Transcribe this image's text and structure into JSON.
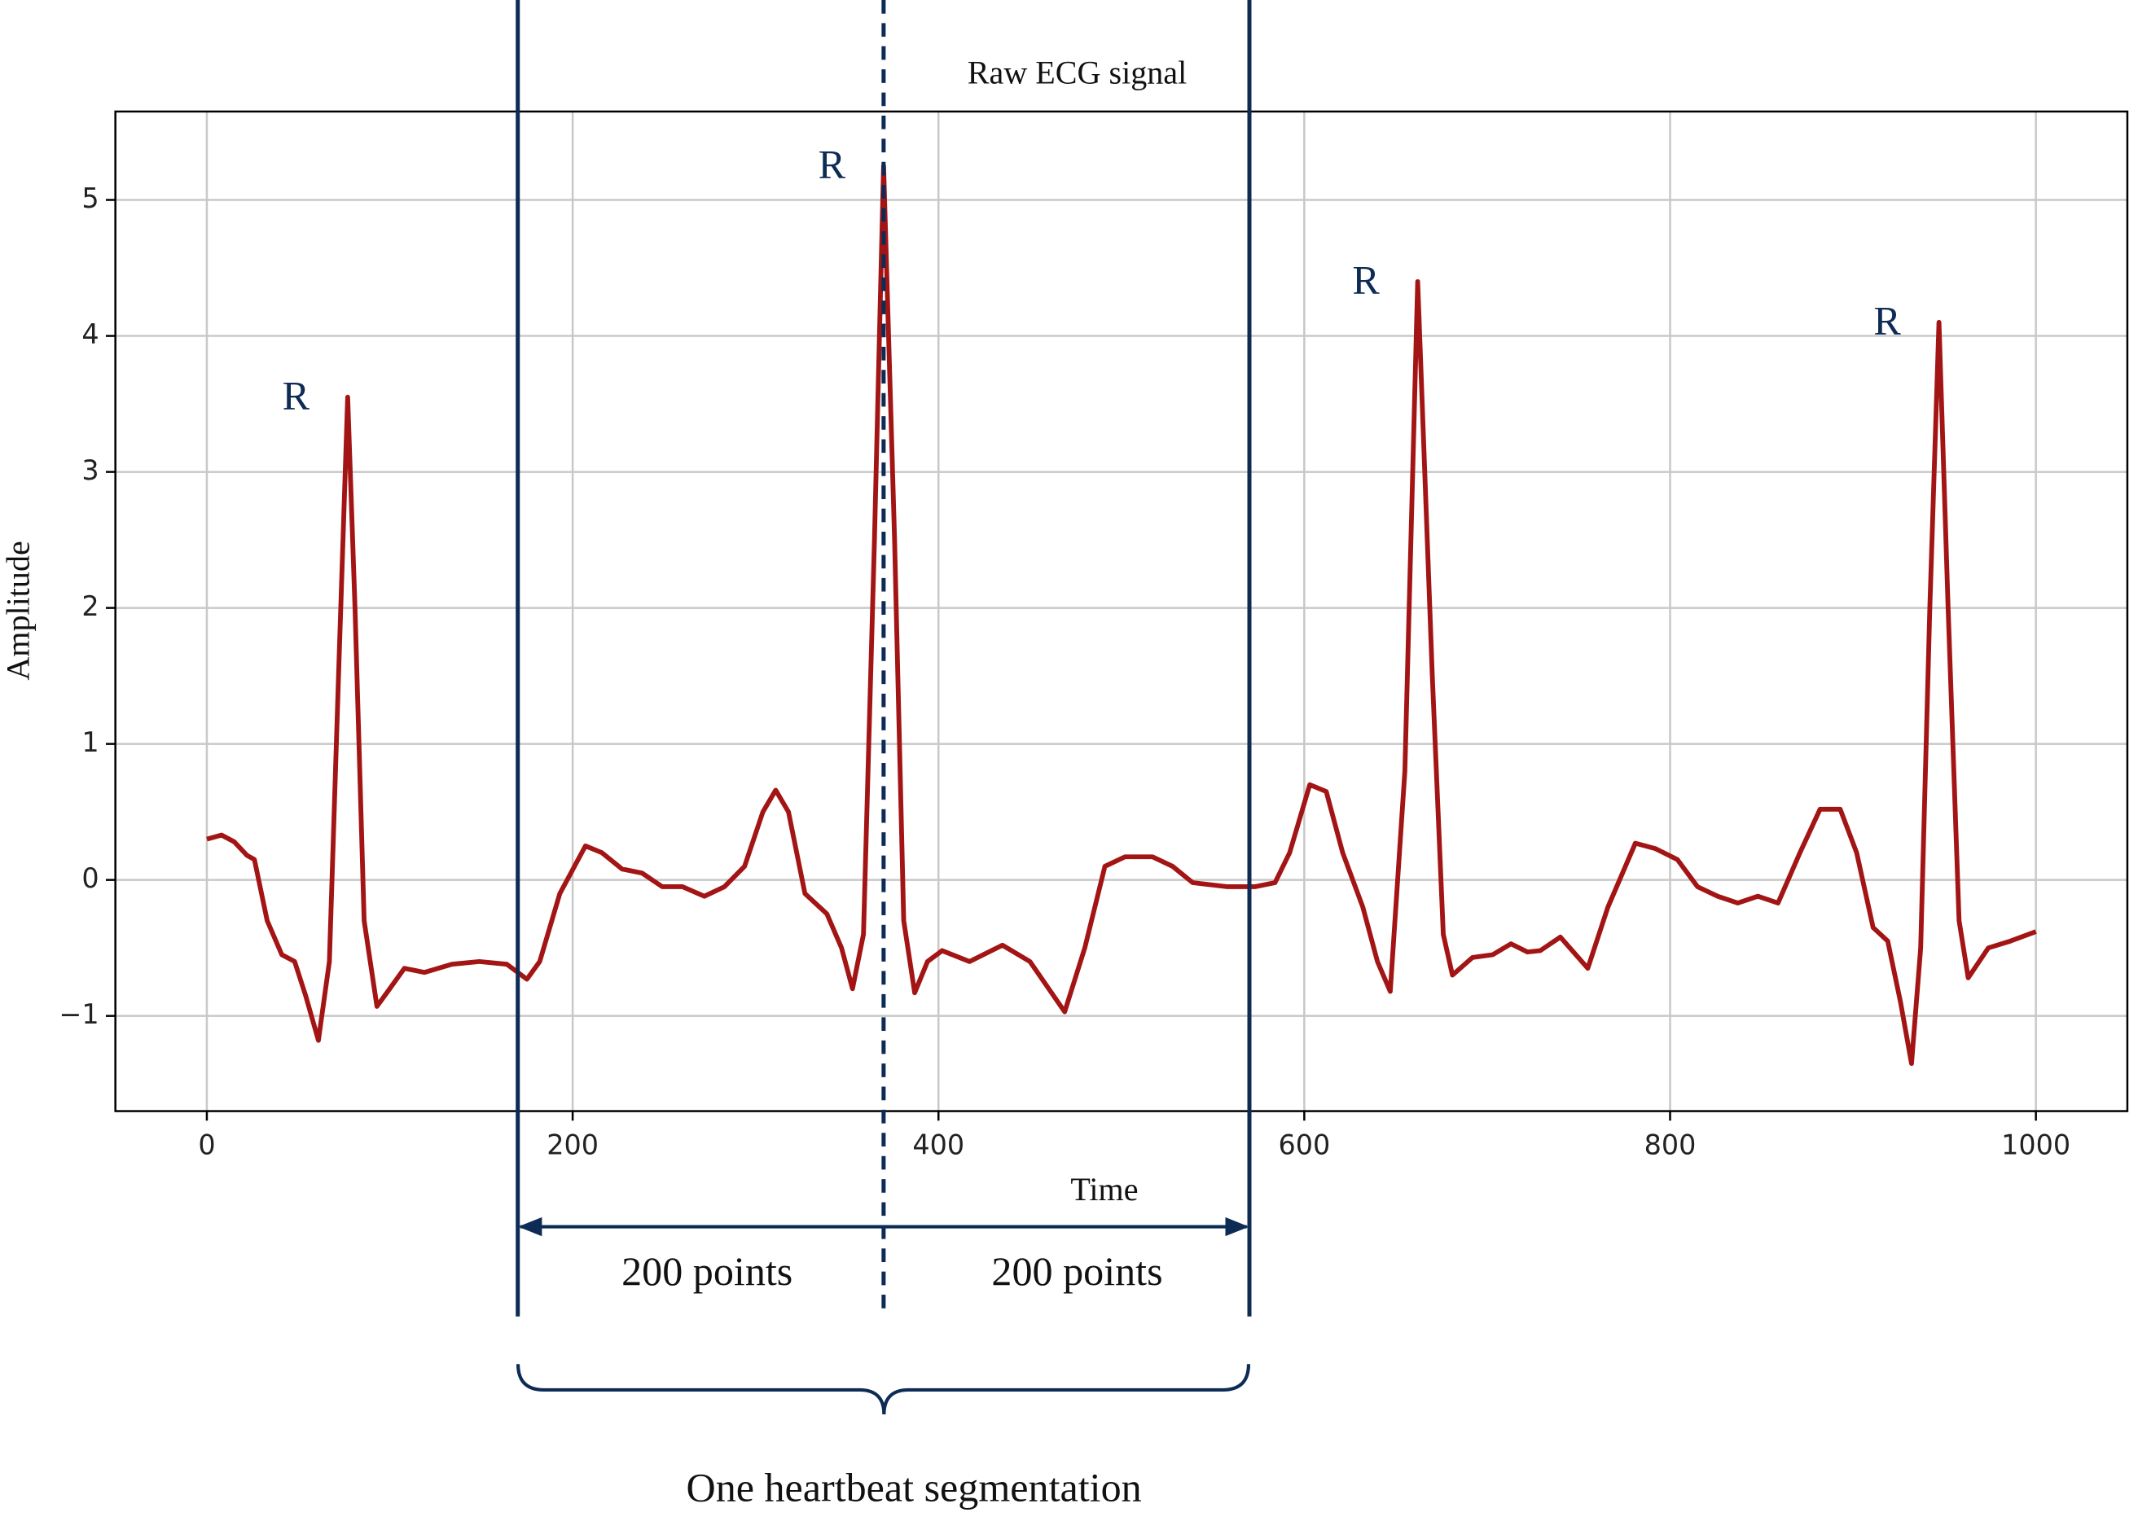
{
  "chart_data": {
    "type": "line",
    "title": "Raw ECG signal",
    "x_label": "Time",
    "y_label": "Amplitude",
    "x": [
      0,
      8,
      15,
      22,
      26,
      33,
      41,
      48,
      54,
      61,
      67,
      72,
      77,
      81,
      86,
      93,
      100,
      108,
      119,
      134,
      149,
      164,
      175,
      182,
      193,
      207,
      216,
      227,
      238,
      249,
      260,
      272,
      283,
      294,
      304,
      311,
      318,
      327,
      339,
      347,
      353,
      359,
      365,
      370,
      376,
      381,
      387,
      394,
      402,
      417,
      435,
      450,
      469,
      480,
      491,
      502,
      517,
      528,
      539,
      558,
      573,
      584,
      592,
      603,
      612,
      621,
      632,
      640,
      647,
      655,
      662,
      670,
      676,
      681,
      692,
      703,
      713,
      722,
      729,
      740,
      755,
      766,
      781,
      792,
      804,
      815,
      826,
      837,
      848,
      859,
      871,
      882,
      893,
      902,
      911,
      919,
      926,
      932,
      937,
      942,
      947,
      952,
      958,
      963,
      974,
      986,
      1000
    ],
    "series": [
      {
        "name": "Raw ECG signal",
        "color": "#a31515",
        "values": [
          0.3,
          0.33,
          0.28,
          0.18,
          0.15,
          -0.3,
          -0.55,
          -0.6,
          -0.85,
          -1.18,
          -0.6,
          1.5,
          3.55,
          2.0,
          -0.3,
          -0.93,
          -0.8,
          -0.65,
          -0.68,
          -0.62,
          -0.6,
          -0.62,
          -0.73,
          -0.6,
          -0.1,
          0.25,
          0.2,
          0.08,
          0.05,
          -0.05,
          -0.05,
          -0.12,
          -0.05,
          0.1,
          0.5,
          0.66,
          0.5,
          -0.1,
          -0.25,
          -0.5,
          -0.8,
          -0.4,
          2.5,
          5.25,
          2.5,
          -0.3,
          -0.83,
          -0.6,
          -0.52,
          -0.6,
          -0.48,
          -0.6,
          -0.97,
          -0.5,
          0.1,
          0.17,
          0.17,
          0.1,
          -0.02,
          -0.05,
          -0.05,
          -0.02,
          0.2,
          0.7,
          0.65,
          0.2,
          -0.2,
          -0.6,
          -0.82,
          0.8,
          4.4,
          1.5,
          -0.4,
          -0.7,
          -0.57,
          -0.55,
          -0.47,
          -0.53,
          -0.52,
          -0.42,
          -0.65,
          -0.2,
          0.27,
          0.23,
          0.15,
          -0.05,
          -0.12,
          -0.17,
          -0.12,
          -0.17,
          0.2,
          0.52,
          0.52,
          0.2,
          -0.35,
          -0.45,
          -0.9,
          -1.35,
          -0.5,
          2.0,
          4.1,
          2.0,
          -0.3,
          -0.72,
          -0.5,
          -0.45,
          -0.38
        ]
      }
    ],
    "xlim": [
      -50,
      1050
    ],
    "ylim": [
      -1.7,
      5.65
    ],
    "xticks": [
      0,
      200,
      400,
      600,
      800,
      1000
    ],
    "yticks": [
      {
        "value": -1,
        "label": "−1"
      },
      0,
      1,
      2,
      3,
      4,
      5
    ],
    "grid": true,
    "peak_labels": [
      "R",
      "R",
      "R",
      "R"
    ],
    "segment_bounds": [
      170,
      370,
      570
    ],
    "segment_labels": [
      "200 points",
      "200 points"
    ],
    "caption": "One heartbeat segmentation"
  }
}
